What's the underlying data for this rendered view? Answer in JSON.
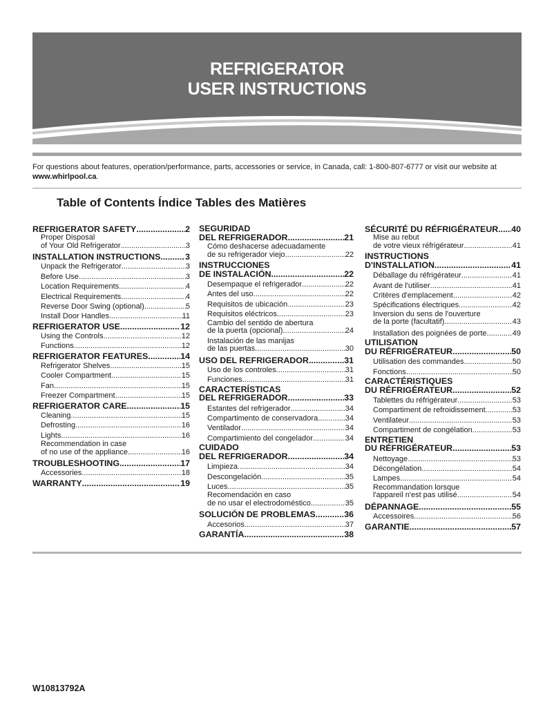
{
  "header": {
    "title_line1": "REFRIGERATOR",
    "title_line2": "USER INSTRUCTIONS",
    "band_color": "#6e6e6e",
    "band_light_color": "#a8a8a8"
  },
  "contact": {
    "text": "For questions about features, operation/performance, parts, accessories or service, in Canada, call: 1-800-807-6777 or visit our website at ",
    "website": "www.whirlpool.ca",
    "end": "."
  },
  "toc": {
    "title": "Table of Contents Índice Tables des Matières",
    "columns": [
      [
        {
          "level": "main",
          "label": "REFRIGERATOR SAFETY",
          "page": "2"
        },
        {
          "level": "sub",
          "pre": "Proper Disposal",
          "label": "of Your Old Refrigerator",
          "page": "3"
        },
        {
          "level": "main",
          "label": "INSTALLATION INSTRUCTIONS",
          "page": "3"
        },
        {
          "level": "sub",
          "label": "Unpack the Refrigerator",
          "page": "3"
        },
        {
          "level": "sub",
          "label": "Before Use",
          "page": "3"
        },
        {
          "level": "sub",
          "label": "Location Requirements",
          "page": "4"
        },
        {
          "level": "sub",
          "label": "Electrical Requirements",
          "page": "4"
        },
        {
          "level": "sub",
          "label": "Reverse Door Swing (optional)",
          "page": "5"
        },
        {
          "level": "sub",
          "label": "Install Door Handles",
          "page": "11"
        },
        {
          "level": "main",
          "label": "REFRIGERATOR USE",
          "page": "12"
        },
        {
          "level": "sub",
          "label": "Using the Controls",
          "page": "12"
        },
        {
          "level": "sub",
          "label": "Functions",
          "page": "12"
        },
        {
          "level": "main",
          "label": "REFRIGERATOR FEATURES",
          "page": "14"
        },
        {
          "level": "sub",
          "label": "Refrigerator Shelves",
          "page": "15"
        },
        {
          "level": "sub",
          "label": "Cooler Compartment",
          "page": "15"
        },
        {
          "level": "sub",
          "label": "Fan",
          "page": "15"
        },
        {
          "level": "sub",
          "label": "Freezer Compartment",
          "page": "15"
        },
        {
          "level": "main",
          "label": "REFRIGERATOR CARE",
          "page": "15"
        },
        {
          "level": "sub",
          "label": "Cleaning",
          "page": "15"
        },
        {
          "level": "sub",
          "label": "Defrosting",
          "page": "16"
        },
        {
          "level": "sub",
          "label": "Lights",
          "page": "16"
        },
        {
          "level": "sub",
          "pre": "Recommendation in case",
          "label": "of no use of the appliance",
          "page": "16"
        },
        {
          "level": "main",
          "label": "TROUBLESHOOTING",
          "page": "17"
        },
        {
          "level": "sub",
          "label": "Accessories",
          "page": "18"
        },
        {
          "level": "main",
          "label": "WARRANTY",
          "page": "19"
        }
      ],
      [
        {
          "level": "main",
          "pre": "SEGURIDAD",
          "label": "DEL REFRIGERADOR",
          "page": "21"
        },
        {
          "level": "sub",
          "pre": "Cómo deshacerse adecuadamente",
          "label": "de su refrigerador viejo",
          "page": "22"
        },
        {
          "level": "main",
          "pre": "INSTRUCCIONES",
          "label": "DE INSTALACIÓN",
          "page": "22"
        },
        {
          "level": "sub",
          "label": "Desempaque el refrigerador",
          "page": "22"
        },
        {
          "level": "sub",
          "label": "Antes del uso",
          "page": "22"
        },
        {
          "level": "sub",
          "label": "Requisitos de ubicación",
          "page": "23"
        },
        {
          "level": "sub",
          "label": "Requisitos eléctricos",
          "page": "23"
        },
        {
          "level": "sub",
          "pre": "Cambio del sentido de abertura",
          "label": "de la puerta (opcional)",
          "page": "24"
        },
        {
          "level": "sub",
          "pre": "Instalación de las manijas",
          "label": "de las puertas",
          "page": "30"
        },
        {
          "level": "main",
          "label": "USO DEL REFRIGERADOR",
          "page": "31"
        },
        {
          "level": "sub",
          "label": "Uso de los controles",
          "page": "31"
        },
        {
          "level": "sub",
          "label": "Funciones",
          "page": "31"
        },
        {
          "level": "main",
          "pre": "CARACTERÍSTICAS",
          "label": "DEL REFRIGERADOR",
          "page": "33"
        },
        {
          "level": "sub",
          "label": "Estantes del refrigerador",
          "page": "34"
        },
        {
          "level": "sub",
          "label": "Compartimento de conservadora",
          "page": "34"
        },
        {
          "level": "sub",
          "label": "Ventilador",
          "page": "34"
        },
        {
          "level": "sub",
          "label": "Compartimiento del congelador",
          "page": "34"
        },
        {
          "level": "main",
          "pre": "CUIDADO",
          "label": "DEL REFRIGERADOR",
          "page": "34"
        },
        {
          "level": "sub",
          "label": "Limpieza",
          "page": "34"
        },
        {
          "level": "sub",
          "label": "Descongelación",
          "page": "35"
        },
        {
          "level": "sub",
          "label": "Luces",
          "page": "35"
        },
        {
          "level": "sub",
          "pre": "Recomendación en caso",
          "label": "de no usar el electrodoméstico",
          "page": "35"
        },
        {
          "level": "main",
          "label": "SOLUCIÓN DE PROBLEMAS",
          "page": "36"
        },
        {
          "level": "sub",
          "label": "Accesorios",
          "page": "37"
        },
        {
          "level": "main",
          "label": "GARANTÍA",
          "page": "38"
        }
      ],
      [
        {
          "level": "main",
          "label": "SÉCURITÉ DU RÉFRIGÉRATEUR",
          "page": "40"
        },
        {
          "level": "sub",
          "pre": "Mise au rebut",
          "label": "de votre vieux réfrigérateur",
          "page": "41"
        },
        {
          "level": "main",
          "pre": "INSTRUCTIONS",
          "label": "D'INSTALLATION",
          "page": "41"
        },
        {
          "level": "sub",
          "label": "Déballage du réfrigérateur",
          "page": "41"
        },
        {
          "level": "sub",
          "label": "Avant de l'utiliser",
          "page": "41"
        },
        {
          "level": "sub",
          "label": "Critères d'emplacement",
          "page": "42"
        },
        {
          "level": "sub",
          "label": "Spécifications électriques",
          "page": "42"
        },
        {
          "level": "sub",
          "pre": "Inversion du sens de l'ouverture",
          "label": "de la porte (facultatif)",
          "page": "43"
        },
        {
          "level": "sub",
          "label": "Installation des poignées de porte",
          "page": "49"
        },
        {
          "level": "main",
          "pre": "UTILISATION",
          "label": "DU RÉFRIGÉRATEUR",
          "page": "50"
        },
        {
          "level": "sub",
          "label": "Utilisation des commandes",
          "page": "50"
        },
        {
          "level": "sub",
          "label": "Fonctions",
          "page": "50"
        },
        {
          "level": "main",
          "pre": "CARACTÉRISTIQUES",
          "label": "DU RÉFRIGÉRATEUR",
          "page": "52"
        },
        {
          "level": "sub",
          "label": "Tablettes du réfrigérateur",
          "page": "53"
        },
        {
          "level": "sub",
          "label": "Compartiment de refroidissement",
          "page": "53"
        },
        {
          "level": "sub",
          "label": "Ventilateur",
          "page": "53"
        },
        {
          "level": "sub",
          "label": "Compartiment de congélation",
          "page": "53"
        },
        {
          "level": "main",
          "pre": "ENTRETIEN",
          "label": "DU RÉFRIGÉRATEUR",
          "page": "53"
        },
        {
          "level": "sub",
          "label": "Nettoyage",
          "page": "53"
        },
        {
          "level": "sub",
          "label": "Décongélation",
          "page": "54"
        },
        {
          "level": "sub",
          "label": "Lampes",
          "page": "54"
        },
        {
          "level": "sub",
          "pre": "Recommandation lorsque",
          "label": "l'appareil n'est pas utilisé",
          "page": "54"
        },
        {
          "level": "main",
          "label": "DÉPANNAGE",
          "page": "55"
        },
        {
          "level": "sub",
          "label": "Accessoires",
          "page": "56"
        },
        {
          "level": "main",
          "label": "GARANTIE",
          "page": "57"
        }
      ]
    ]
  },
  "footer": {
    "code": "W10813792A"
  }
}
